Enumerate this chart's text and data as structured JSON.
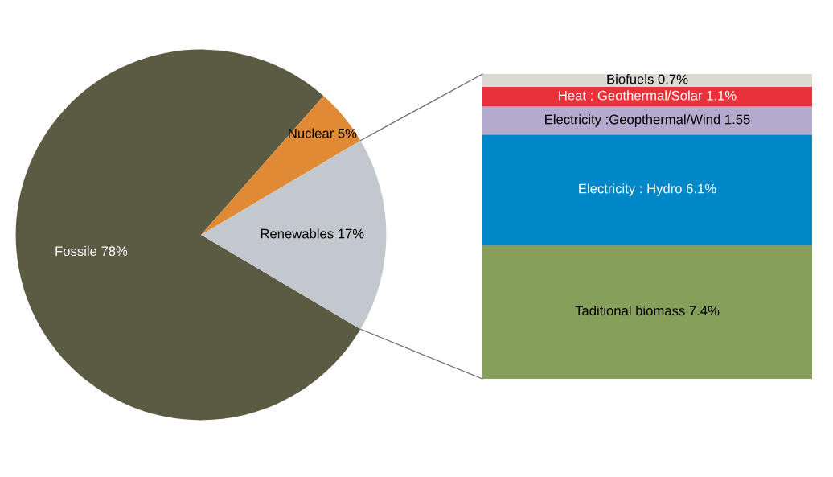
{
  "chart_data": [
    {
      "type": "pie",
      "categories": [
        "Fossile 78%",
        "Nuclear 5%",
        "Renewables 17%"
      ],
      "values": [
        78,
        5,
        17
      ],
      "colors": [
        "#5b5a42",
        "#e08a35",
        "#c3c8ce"
      ]
    },
    {
      "type": "bar",
      "stacked": true,
      "categories": [
        null
      ],
      "series": [
        {
          "color": "#86a05c",
          "values": [
            7.4
          ],
          "value_labels": [
            "Taditional biomass 7.4%"
          ]
        },
        {
          "color": "#0087c8",
          "values": [
            6.1
          ],
          "value_labels": [
            "Electricity : Hydro 6.1%"
          ]
        },
        {
          "color": "#b3aacd",
          "values": [
            1.55
          ],
          "value_labels": [
            "Electricity :Geopthermal/Wind 1.55"
          ]
        },
        {
          "color": "#e8313a",
          "values": [
            1.1
          ],
          "value_labels": [
            "Heat : Geothermal/Solar 1.1%"
          ]
        },
        {
          "color": "#dcdad2",
          "values": [
            0.7
          ],
          "value_labels": [
            "Biofuels 0.7%"
          ]
        }
      ]
    }
  ]
}
